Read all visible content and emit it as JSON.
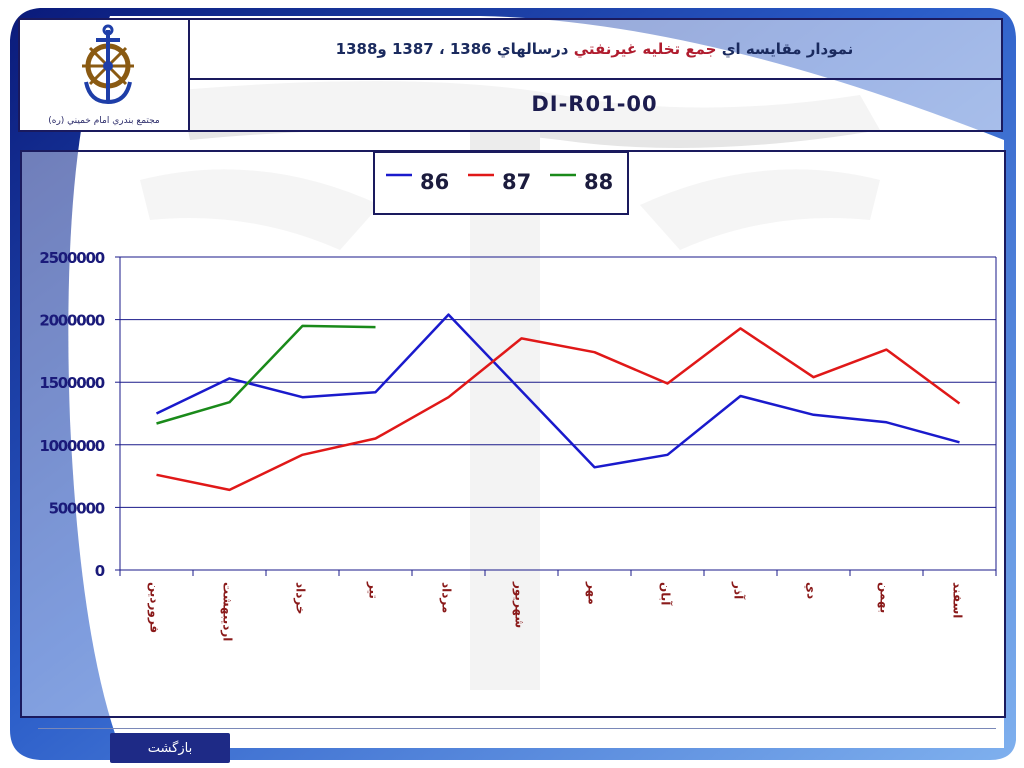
{
  "header": {
    "logo_caption": "مجتمع بندري امام خميني (ره)",
    "title_prefix": "نمودار مقايسه اي ",
    "title_highlight": "جمع تخليه غيرنفتي",
    "title_suffix": " درسالهاي 1386 ، 1387 و1388",
    "code": "DI-R01-00"
  },
  "footer": {
    "back_label": "بازگشت"
  },
  "colors": {
    "frame": "#1a1a5e",
    "accent_red": "#b01c2e",
    "button_bg": "#1e2a86"
  },
  "chart_data": {
    "type": "line",
    "title": "",
    "xlabel": "",
    "ylabel": "",
    "ylim": [
      0,
      2500000
    ],
    "yticks": [
      0,
      500000,
      1000000,
      1500000,
      2000000,
      2500000
    ],
    "ytick_labels": [
      "0",
      "500000",
      "1000000",
      "1500000",
      "2000000",
      "2500000"
    ],
    "grid": true,
    "legend_position": "top-center",
    "categories": [
      "فروردين",
      "ارديبهشت",
      "خرداد",
      "تير",
      "مرداد",
      "شهريور",
      "مهر",
      "آبان",
      "آذر",
      "دي",
      "بهمن",
      "اسفند"
    ],
    "series": [
      {
        "name": "86",
        "color": "#1a1acc",
        "values": [
          1250000,
          1530000,
          1380000,
          1420000,
          2040000,
          1430000,
          820000,
          920000,
          1390000,
          1240000,
          1180000,
          1020000
        ]
      },
      {
        "name": "87",
        "color": "#e01818",
        "values": [
          760000,
          640000,
          920000,
          1050000,
          1380000,
          1850000,
          1740000,
          1490000,
          1930000,
          1540000,
          1760000,
          1330000
        ]
      },
      {
        "name": "88",
        "color": "#1a8a1a",
        "values": [
          1170000,
          1340000,
          1950000,
          1940000,
          null,
          null,
          null,
          null,
          null,
          null,
          null,
          null
        ]
      }
    ]
  }
}
